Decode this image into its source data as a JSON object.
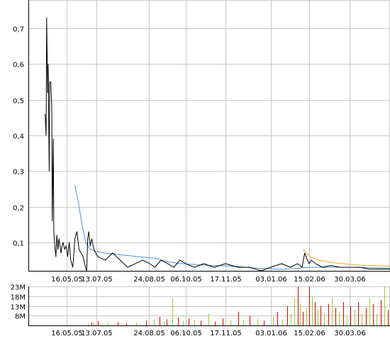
{
  "chart_data": [
    {
      "type": "line",
      "title": "",
      "xlabel": "",
      "ylabel": "",
      "x_ticks": [
        "16.05.05",
        "13.07.05",
        "24.08.05",
        "06.10.05",
        "17.11.05",
        "03.01.06",
        "15.02.06",
        "30.03.06"
      ],
      "y_ticks": [
        "0,1",
        "0,2",
        "0,3",
        "0,4",
        "0,5",
        "0,6",
        "0,7"
      ],
      "ylim": [
        0.02,
        0.78
      ],
      "x_range": [
        "2005-04-04",
        "2006-05-15"
      ],
      "grid": true,
      "colors": {
        "price": "#000000",
        "ma_long": "#4a90e2",
        "ma_short": "#f5a623"
      },
      "series": [
        {
          "key": "price",
          "x": [
            "2005-04-04",
            "2005-04-06",
            "2005-04-07",
            "2005-04-09",
            "2005-04-10",
            "2005-04-12",
            "2005-04-13",
            "2005-04-15",
            "2005-04-17",
            "2005-04-18",
            "2005-04-20",
            "2005-04-21",
            "2005-04-23",
            "2005-04-25",
            "2005-04-27",
            "2005-04-29",
            "2005-05-01",
            "2005-05-03",
            "2005-05-05",
            "2005-05-07",
            "2005-05-09",
            "2005-05-12",
            "2005-05-15",
            "2005-05-18",
            "2005-05-21",
            "2005-05-24",
            "2005-05-28",
            "2005-06-01",
            "2005-06-05",
            "2005-06-09",
            "2005-06-13",
            "2005-06-17",
            "2005-06-20",
            "2005-06-22",
            "2005-06-24",
            "2005-06-26",
            "2005-06-28",
            "2005-07-01",
            "2005-07-04",
            "2005-07-08",
            "2005-07-14",
            "2005-07-20",
            "2005-07-26",
            "2005-08-01",
            "2005-08-07",
            "2005-08-13",
            "2005-08-19",
            "2005-08-25",
            "2005-08-31",
            "2005-09-07",
            "2005-09-15",
            "2005-09-22",
            "2005-09-29",
            "2005-10-06",
            "2005-10-15",
            "2005-10-25",
            "2005-11-05",
            "2005-11-17",
            "2005-11-30",
            "2005-12-12",
            "2005-12-24",
            "2006-01-03",
            "2006-01-15",
            "2006-01-25",
            "2006-02-02",
            "2006-02-07",
            "2006-02-10",
            "2006-02-13",
            "2006-02-15",
            "2006-02-17",
            "2006-02-22",
            "2006-03-01",
            "2006-03-10",
            "2006-03-20",
            "2006-03-30",
            "2006-04-10",
            "2006-04-20",
            "2006-05-01",
            "2006-05-15"
          ],
          "values": [
            0.46,
            0.4,
            0.73,
            0.52,
            0.6,
            0.3,
            0.55,
            0.55,
            0.48,
            0.16,
            0.39,
            0.13,
            0.09,
            0.06,
            0.12,
            0.08,
            0.11,
            0.09,
            0.07,
            0.09,
            0.1,
            0.08,
            0.09,
            0.06,
            0.1,
            0.05,
            0.03,
            0.11,
            0.13,
            0.08,
            0.07,
            0.06,
            0.04,
            0.03,
            0.02,
            0.11,
            0.13,
            0.09,
            0.11,
            0.08,
            0.06,
            0.05,
            0.07,
            0.05,
            0.03,
            0.04,
            0.05,
            0.04,
            0.03,
            0.05,
            0.04,
            0.03,
            0.05,
            0.04,
            0.03,
            0.04,
            0.03,
            0.04,
            0.03,
            0.03,
            0.02,
            0.03,
            0.04,
            0.03,
            0.04,
            0.03,
            0.07,
            0.05,
            0.04,
            0.05,
            0.04,
            0.03,
            0.035,
            0.03,
            0.03,
            0.03,
            0.025,
            0.025,
            0.025
          ]
        },
        {
          "key": "ma_long",
          "x": [
            "2005-06-01",
            "2005-06-08",
            "2005-06-15",
            "2005-06-22",
            "2005-07-01",
            "2005-07-10",
            "2005-07-20",
            "2005-08-01",
            "2005-08-15",
            "2005-09-01",
            "2005-09-15",
            "2005-10-01",
            "2005-10-15",
            "2005-11-01",
            "2005-11-17",
            "2005-12-01",
            "2005-12-15",
            "2006-01-01",
            "2006-01-15",
            "2006-02-01",
            "2006-02-15",
            "2006-03-01",
            "2006-03-15",
            "2006-04-01",
            "2006-04-15",
            "2006-05-01",
            "2006-05-15"
          ],
          "values": [
            0.26,
            0.21,
            0.15,
            0.1,
            0.08,
            0.075,
            0.07,
            0.065,
            0.06,
            0.055,
            0.045,
            0.04,
            0.038,
            0.035,
            0.034,
            0.032,
            0.028,
            0.026,
            0.024,
            0.027,
            0.03,
            0.03,
            0.03,
            0.03,
            0.029,
            0.028,
            0.028
          ]
        },
        {
          "key": "ma_short",
          "x": [
            "2006-02-08",
            "2006-02-12",
            "2006-02-16",
            "2006-02-20",
            "2006-03-01",
            "2006-03-15",
            "2006-04-01",
            "2006-04-15",
            "2006-05-01",
            "2006-05-15"
          ],
          "values": [
            0.08,
            0.07,
            0.06,
            0.055,
            0.048,
            0.042,
            0.038,
            0.035,
            0.034,
            0.033
          ]
        }
      ]
    },
    {
      "type": "bar",
      "title": "",
      "xlabel": "",
      "ylabel": "",
      "x_ticks": [
        "16.05.05",
        "13.07.05",
        "24.08.05",
        "06.10.05",
        "17.11.05",
        "03.01.06",
        "15.02.06",
        "30.03.06"
      ],
      "y_ticks": [
        "8M",
        "13M",
        "18M",
        "23M"
      ],
      "ylim": [
        3,
        23
      ],
      "grid": true,
      "colors": {
        "up": "#99cc33",
        "down": "#dd0000"
      },
      "bars": [
        {
          "date": "2005-06-27",
          "value": 4.0,
          "dir": "up"
        },
        {
          "date": "2005-07-03",
          "value": 4.5,
          "dir": "down"
        },
        {
          "date": "2005-07-08",
          "value": 4.3,
          "dir": "up"
        },
        {
          "date": "2005-07-14",
          "value": 5.2,
          "dir": "down"
        },
        {
          "date": "2005-07-22",
          "value": 4.2,
          "dir": "up"
        },
        {
          "date": "2005-07-30",
          "value": 4.7,
          "dir": "down"
        },
        {
          "date": "2005-08-06",
          "value": 3.9,
          "dir": "down"
        },
        {
          "date": "2005-08-14",
          "value": 4.5,
          "dir": "up"
        },
        {
          "date": "2005-08-22",
          "value": 5.6,
          "dir": "down"
        },
        {
          "date": "2005-08-30",
          "value": 6.0,
          "dir": "up"
        },
        {
          "date": "2005-09-05",
          "value": 7.5,
          "dir": "down"
        },
        {
          "date": "2005-09-10",
          "value": 5.0,
          "dir": "up"
        },
        {
          "date": "2005-09-14",
          "value": 6.2,
          "dir": "down"
        },
        {
          "date": "2005-09-20",
          "value": 17.0,
          "dir": "up"
        },
        {
          "date": "2005-09-27",
          "value": 7.2,
          "dir": "down"
        },
        {
          "date": "2005-10-03",
          "value": 5.5,
          "dir": "up"
        },
        {
          "date": "2005-10-09",
          "value": 6.5,
          "dir": "down"
        },
        {
          "date": "2005-10-15",
          "value": 6.0,
          "dir": "up"
        },
        {
          "date": "2005-10-22",
          "value": 5.5,
          "dir": "down"
        },
        {
          "date": "2005-10-30",
          "value": 9.0,
          "dir": "up"
        },
        {
          "date": "2005-11-06",
          "value": 5.0,
          "dir": "down"
        },
        {
          "date": "2005-11-14",
          "value": 6.5,
          "dir": "down"
        },
        {
          "date": "2005-11-22",
          "value": 5.5,
          "dir": "up"
        },
        {
          "date": "2005-11-30",
          "value": 10.0,
          "dir": "down"
        },
        {
          "date": "2005-12-05",
          "value": 6.0,
          "dir": "up"
        },
        {
          "date": "2005-12-12",
          "value": 8.0,
          "dir": "down"
        },
        {
          "date": "2005-12-20",
          "value": 6.5,
          "dir": "up"
        },
        {
          "date": "2005-12-27",
          "value": 5.5,
          "dir": "down"
        },
        {
          "date": "2006-01-05",
          "value": 7.5,
          "dir": "up"
        },
        {
          "date": "2006-01-10",
          "value": 10.0,
          "dir": "down"
        },
        {
          "date": "2006-01-16",
          "value": 6.0,
          "dir": "up"
        },
        {
          "date": "2006-01-21",
          "value": 13.0,
          "dir": "down"
        },
        {
          "date": "2006-01-25",
          "value": 9.0,
          "dir": "up"
        },
        {
          "date": "2006-01-29",
          "value": 17.0,
          "dir": "up"
        },
        {
          "date": "2006-02-02",
          "value": 23.0,
          "dir": "down"
        },
        {
          "date": "2006-02-05",
          "value": 14.0,
          "dir": "up"
        },
        {
          "date": "2006-02-08",
          "value": 10.0,
          "dir": "down"
        },
        {
          "date": "2006-02-12",
          "value": 12.0,
          "dir": "up"
        },
        {
          "date": "2006-02-15",
          "value": 23.0,
          "dir": "down"
        },
        {
          "date": "2006-02-18",
          "value": 18.0,
          "dir": "up"
        },
        {
          "date": "2006-02-21",
          "value": 15.0,
          "dir": "down"
        },
        {
          "date": "2006-02-24",
          "value": 11.0,
          "dir": "up"
        },
        {
          "date": "2006-02-27",
          "value": 13.0,
          "dir": "down"
        },
        {
          "date": "2006-03-03",
          "value": 9.0,
          "dir": "up"
        },
        {
          "date": "2006-03-07",
          "value": 14.0,
          "dir": "down"
        },
        {
          "date": "2006-03-11",
          "value": 17.0,
          "dir": "up"
        },
        {
          "date": "2006-03-15",
          "value": 12.0,
          "dir": "down"
        },
        {
          "date": "2006-03-19",
          "value": 10.0,
          "dir": "up"
        },
        {
          "date": "2006-03-23",
          "value": 15.0,
          "dir": "down"
        },
        {
          "date": "2006-03-27",
          "value": 8.0,
          "dir": "up"
        },
        {
          "date": "2006-03-31",
          "value": 13.0,
          "dir": "down"
        },
        {
          "date": "2006-04-04",
          "value": 11.0,
          "dir": "up"
        },
        {
          "date": "2006-04-08",
          "value": 15.0,
          "dir": "down"
        },
        {
          "date": "2006-04-12",
          "value": 9.0,
          "dir": "up"
        },
        {
          "date": "2006-04-16",
          "value": 12.0,
          "dir": "down"
        },
        {
          "date": "2006-04-20",
          "value": 17.0,
          "dir": "up"
        },
        {
          "date": "2006-04-24",
          "value": 14.0,
          "dir": "down"
        },
        {
          "date": "2006-04-28",
          "value": 9.0,
          "dir": "up"
        },
        {
          "date": "2006-05-02",
          "value": 16.0,
          "dir": "down"
        },
        {
          "date": "2006-05-06",
          "value": 23.0,
          "dir": "up"
        },
        {
          "date": "2006-05-10",
          "value": 11.0,
          "dir": "down"
        },
        {
          "date": "2006-05-14",
          "value": 14.0,
          "dir": "down"
        }
      ]
    }
  ]
}
